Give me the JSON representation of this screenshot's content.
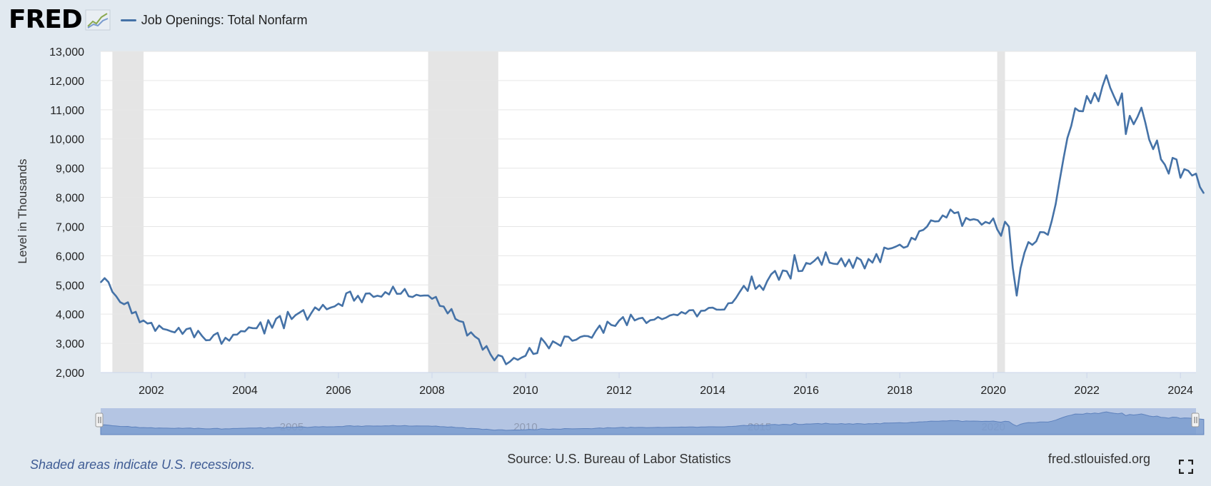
{
  "header": {
    "logo_text": "FRED",
    "legend_label": "Job Openings: Total Nonfarm"
  },
  "footer": {
    "recession_note": "Shaded areas indicate U.S. recessions.",
    "source": "Source: U.S. Bureau of Labor Statistics",
    "site": "fred.stlouisfed.org"
  },
  "icons": [
    "fred-graph-icon",
    "fullscreen-icon",
    "navigator-handle-icon"
  ],
  "colors": {
    "series": "#4572a7",
    "background": "#e1e9f0",
    "recession": "#e5e5e5",
    "navigator_fill": "#b4c5e3",
    "navigator_area": "#7b9ccf"
  },
  "chart_data": {
    "type": "line",
    "title": "",
    "xlabel": "",
    "ylabel": "Level in Thousands",
    "x_range": [
      "2000-12",
      "2024-05"
    ],
    "ylim": [
      2000,
      13000
    ],
    "yticks": [
      2000,
      3000,
      4000,
      5000,
      6000,
      7000,
      8000,
      9000,
      10000,
      11000,
      12000,
      13000
    ],
    "ytick_labels": [
      "2,000",
      "3,000",
      "4,000",
      "5,000",
      "6,000",
      "7,000",
      "8,000",
      "9,000",
      "10,000",
      "11,000",
      "12,000",
      "13,000"
    ],
    "xticks": [
      "2002",
      "2004",
      "2006",
      "2008",
      "2010",
      "2012",
      "2014",
      "2016",
      "2018",
      "2020",
      "2022",
      "2024"
    ],
    "navigator_ticks": [
      "2005",
      "2010",
      "2015",
      "2020"
    ],
    "grid": true,
    "legend_position": "top-left",
    "recessions": [
      {
        "start": "2001-03",
        "end": "2001-11"
      },
      {
        "start": "2007-12",
        "end": "2009-06"
      },
      {
        "start": "2020-02",
        "end": "2020-04"
      }
    ],
    "series": [
      {
        "name": "Job Openings: Total Nonfarm",
        "frequency": "monthly",
        "start": "2000-12",
        "values": [
          5088,
          5234,
          5097,
          4762,
          4611,
          4411,
          4340,
          4406,
          4025,
          4079,
          3720,
          3782,
          3680,
          3703,
          3426,
          3612,
          3494,
          3463,
          3414,
          3375,
          3532,
          3322,
          3487,
          3524,
          3205,
          3431,
          3254,
          3104,
          3112,
          3283,
          3360,
          2983,
          3191,
          3093,
          3293,
          3300,
          3421,
          3408,
          3548,
          3521,
          3517,
          3721,
          3335,
          3794,
          3529,
          3840,
          3939,
          3516,
          4081,
          3832,
          3968,
          4051,
          4140,
          3805,
          4030,
          4232,
          4134,
          4320,
          4165,
          4224,
          4263,
          4358,
          4279,
          4713,
          4775,
          4458,
          4629,
          4405,
          4704,
          4712,
          4588,
          4630,
          4596,
          4754,
          4674,
          4944,
          4697,
          4699,
          4863,
          4612,
          4586,
          4664,
          4628,
          4637,
          4639,
          4524,
          4591,
          4283,
          4261,
          4022,
          4176,
          3837,
          3763,
          3728,
          3266,
          3379,
          3232,
          3142,
          2779,
          2907,
          2623,
          2418,
          2596,
          2550,
          2284,
          2375,
          2501,
          2436,
          2513,
          2573,
          2843,
          2636,
          2665,
          3181,
          3024,
          2826,
          3071,
          2996,
          2911,
          3238,
          3224,
          3087,
          3125,
          3214,
          3253,
          3246,
          3191,
          3421,
          3611,
          3357,
          3742,
          3629,
          3593,
          3778,
          3900,
          3620,
          3983,
          3785,
          3847,
          3876,
          3695,
          3791,
          3811,
          3902,
          3827,
          3878,
          3952,
          3991,
          3964,
          4072,
          4013,
          4131,
          4138,
          3920,
          4113,
          4121,
          4215,
          4221,
          4155,
          4150,
          4159,
          4370,
          4385,
          4558,
          4771,
          4971,
          4795,
          5292,
          4863,
          4994,
          4828,
          5135,
          5363,
          5482,
          5172,
          5495,
          5470,
          5216,
          6024,
          5470,
          5480,
          5753,
          5715,
          5817,
          5948,
          5689,
          6118,
          5764,
          5727,
          5714,
          5913,
          5634,
          5873,
          5584,
          5938,
          5861,
          5565,
          5889,
          5764,
          6060,
          5778,
          6281,
          6232,
          6261,
          6314,
          6381,
          6276,
          6321,
          6614,
          6548,
          6841,
          6881,
          6998,
          7215,
          7175,
          7185,
          7381,
          7309,
          7584,
          7458,
          7496,
          7019,
          7296,
          7225,
          7253,
          7219,
          7062,
          7161,
          7107,
          7279,
          6904,
          6684,
          7165,
          6996,
          5587,
          4636,
          5576,
          6103,
          6468,
          6372,
          6493,
          6810,
          6804,
          6718,
          7195,
          7773,
          8561,
          9325,
          10036,
          10451,
          11052,
          10956,
          10950,
          11473,
          11222,
          11574,
          11290,
          11800,
          12182,
          11754,
          11446,
          11160,
          11562,
          10166,
          10793,
          10504,
          10756,
          11074,
          10563,
          9974,
          9650,
          9950,
          9305,
          9123,
          8813,
          9352,
          9299,
          8670,
          8964,
          8912,
          8747,
          8813,
          8355,
          8140
        ]
      }
    ]
  }
}
